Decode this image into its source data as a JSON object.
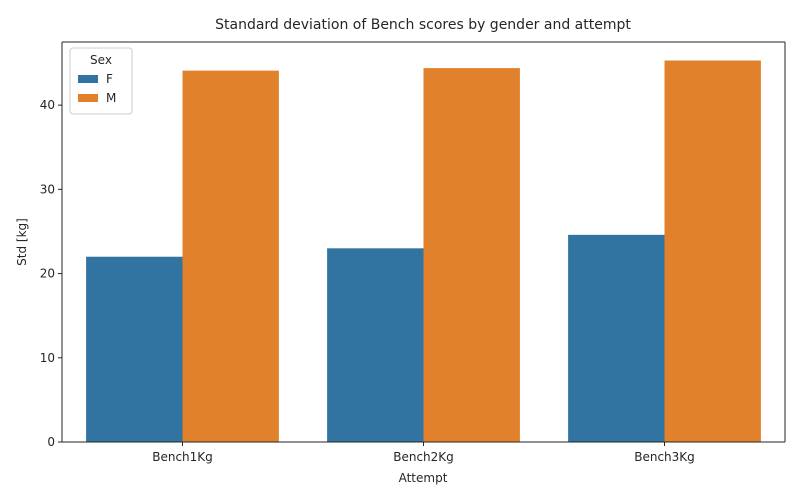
{
  "chart_data": {
    "type": "bar",
    "title": "Standard deviation of Bench scores by gender and attempt",
    "xlabel": "Attempt",
    "ylabel": "Std [kg]",
    "categories": [
      "Bench1Kg",
      "Bench2Kg",
      "Bench3Kg"
    ],
    "series": [
      {
        "name": "F",
        "color": "#3274a1",
        "values": [
          22.0,
          23.0,
          24.6
        ]
      },
      {
        "name": "M",
        "color": "#e1812c",
        "values": [
          44.1,
          44.4,
          45.3
        ]
      }
    ],
    "ylim": [
      0,
      47.5
    ],
    "yticks": [
      0,
      10,
      20,
      30,
      40
    ],
    "legend": {
      "title": "Sex",
      "position": "top-left"
    },
    "grid": false
  }
}
